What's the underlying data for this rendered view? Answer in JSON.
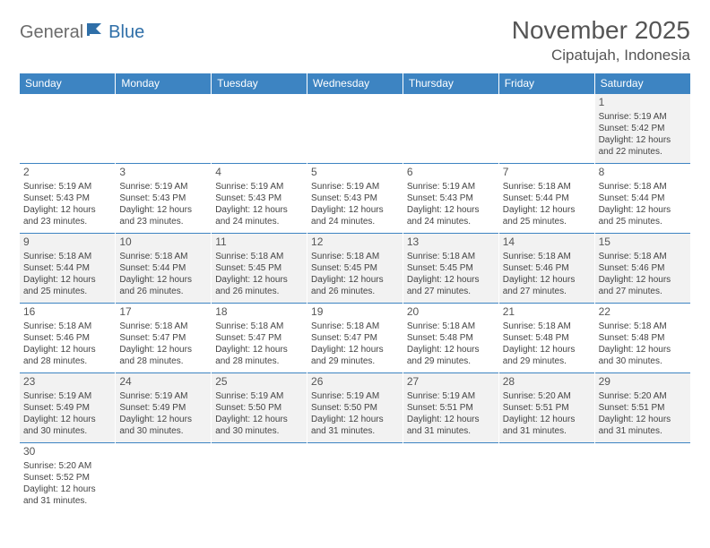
{
  "logo": {
    "text1": "General",
    "text2": "Blue",
    "flag_color": "#2f6fa8"
  },
  "title": "November 2025",
  "location": "Cipatujah, Indonesia",
  "colors": {
    "header_bg": "#3d84c2",
    "header_text": "#ffffff",
    "row_alt_bg": "#f2f2f2",
    "border": "#3d84c2",
    "text": "#444444",
    "title_color": "#555555"
  },
  "weekdays": [
    "Sunday",
    "Monday",
    "Tuesday",
    "Wednesday",
    "Thursday",
    "Friday",
    "Saturday"
  ],
  "weeks": [
    [
      null,
      null,
      null,
      null,
      null,
      null,
      {
        "d": "1",
        "sr": "5:19 AM",
        "ss": "5:42 PM",
        "dl": "12 hours and 22 minutes."
      }
    ],
    [
      {
        "d": "2",
        "sr": "5:19 AM",
        "ss": "5:43 PM",
        "dl": "12 hours and 23 minutes."
      },
      {
        "d": "3",
        "sr": "5:19 AM",
        "ss": "5:43 PM",
        "dl": "12 hours and 23 minutes."
      },
      {
        "d": "4",
        "sr": "5:19 AM",
        "ss": "5:43 PM",
        "dl": "12 hours and 24 minutes."
      },
      {
        "d": "5",
        "sr": "5:19 AM",
        "ss": "5:43 PM",
        "dl": "12 hours and 24 minutes."
      },
      {
        "d": "6",
        "sr": "5:19 AM",
        "ss": "5:43 PM",
        "dl": "12 hours and 24 minutes."
      },
      {
        "d": "7",
        "sr": "5:18 AM",
        "ss": "5:44 PM",
        "dl": "12 hours and 25 minutes."
      },
      {
        "d": "8",
        "sr": "5:18 AM",
        "ss": "5:44 PM",
        "dl": "12 hours and 25 minutes."
      }
    ],
    [
      {
        "d": "9",
        "sr": "5:18 AM",
        "ss": "5:44 PM",
        "dl": "12 hours and 25 minutes."
      },
      {
        "d": "10",
        "sr": "5:18 AM",
        "ss": "5:44 PM",
        "dl": "12 hours and 26 minutes."
      },
      {
        "d": "11",
        "sr": "5:18 AM",
        "ss": "5:45 PM",
        "dl": "12 hours and 26 minutes."
      },
      {
        "d": "12",
        "sr": "5:18 AM",
        "ss": "5:45 PM",
        "dl": "12 hours and 26 minutes."
      },
      {
        "d": "13",
        "sr": "5:18 AM",
        "ss": "5:45 PM",
        "dl": "12 hours and 27 minutes."
      },
      {
        "d": "14",
        "sr": "5:18 AM",
        "ss": "5:46 PM",
        "dl": "12 hours and 27 minutes."
      },
      {
        "d": "15",
        "sr": "5:18 AM",
        "ss": "5:46 PM",
        "dl": "12 hours and 27 minutes."
      }
    ],
    [
      {
        "d": "16",
        "sr": "5:18 AM",
        "ss": "5:46 PM",
        "dl": "12 hours and 28 minutes."
      },
      {
        "d": "17",
        "sr": "5:18 AM",
        "ss": "5:47 PM",
        "dl": "12 hours and 28 minutes."
      },
      {
        "d": "18",
        "sr": "5:18 AM",
        "ss": "5:47 PM",
        "dl": "12 hours and 28 minutes."
      },
      {
        "d": "19",
        "sr": "5:18 AM",
        "ss": "5:47 PM",
        "dl": "12 hours and 29 minutes."
      },
      {
        "d": "20",
        "sr": "5:18 AM",
        "ss": "5:48 PM",
        "dl": "12 hours and 29 minutes."
      },
      {
        "d": "21",
        "sr": "5:18 AM",
        "ss": "5:48 PM",
        "dl": "12 hours and 29 minutes."
      },
      {
        "d": "22",
        "sr": "5:18 AM",
        "ss": "5:48 PM",
        "dl": "12 hours and 30 minutes."
      }
    ],
    [
      {
        "d": "23",
        "sr": "5:19 AM",
        "ss": "5:49 PM",
        "dl": "12 hours and 30 minutes."
      },
      {
        "d": "24",
        "sr": "5:19 AM",
        "ss": "5:49 PM",
        "dl": "12 hours and 30 minutes."
      },
      {
        "d": "25",
        "sr": "5:19 AM",
        "ss": "5:50 PM",
        "dl": "12 hours and 30 minutes."
      },
      {
        "d": "26",
        "sr": "5:19 AM",
        "ss": "5:50 PM",
        "dl": "12 hours and 31 minutes."
      },
      {
        "d": "27",
        "sr": "5:19 AM",
        "ss": "5:51 PM",
        "dl": "12 hours and 31 minutes."
      },
      {
        "d": "28",
        "sr": "5:20 AM",
        "ss": "5:51 PM",
        "dl": "12 hours and 31 minutes."
      },
      {
        "d": "29",
        "sr": "5:20 AM",
        "ss": "5:51 PM",
        "dl": "12 hours and 31 minutes."
      }
    ],
    [
      {
        "d": "30",
        "sr": "5:20 AM",
        "ss": "5:52 PM",
        "dl": "12 hours and 31 minutes."
      },
      null,
      null,
      null,
      null,
      null,
      null
    ]
  ],
  "labels": {
    "sunrise": "Sunrise:",
    "sunset": "Sunset:",
    "daylight": "Daylight:"
  }
}
